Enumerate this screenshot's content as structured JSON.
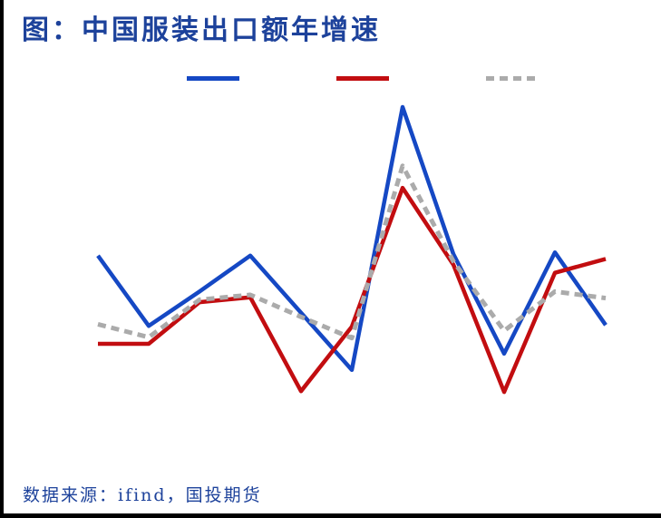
{
  "title": "图：中国服装出口额年增速",
  "source_note": "数据来源：ifind，国投期货",
  "colors": {
    "title_text": "#1d429b",
    "source_text": "#1d429b",
    "edge_rule": "#000000",
    "blue_line": "#1548c4",
    "red_line": "#c20d10",
    "gray_line": "#ababab"
  },
  "chart_data": {
    "type": "line",
    "title": "图：中国服装出口额年增速",
    "x": [
      1,
      2,
      3,
      4,
      5,
      6,
      7,
      8,
      9,
      10,
      11
    ],
    "xlabel": "",
    "ylabel": "",
    "ylim": [
      -12,
      27
    ],
    "grid": false,
    "axes_visible": false,
    "legend_position": "top",
    "legend_labels_visible": false,
    "series": [
      {
        "name": "blue-series",
        "label": "",
        "color": "#1548c4",
        "style": "solid",
        "values": [
          6.8,
          -1.8,
          2.4,
          6.8,
          -0.2,
          -7.2,
          25.0,
          7.0,
          -5.2,
          7.2,
          -1.7
        ]
      },
      {
        "name": "red-series",
        "label": "",
        "color": "#c20d10",
        "style": "solid",
        "values": [
          -4.0,
          -4.0,
          1.1,
          1.7,
          -9.8,
          -1.9,
          15.1,
          5.7,
          -9.9,
          4.7,
          6.4
        ]
      },
      {
        "name": "gray-dashed-series",
        "label": "",
        "color": "#ababab",
        "style": "dashed",
        "values": [
          -1.6,
          -3.2,
          1.4,
          2.0,
          -0.7,
          -3.3,
          17.8,
          6.1,
          -2.4,
          2.4,
          1.6
        ]
      }
    ]
  }
}
